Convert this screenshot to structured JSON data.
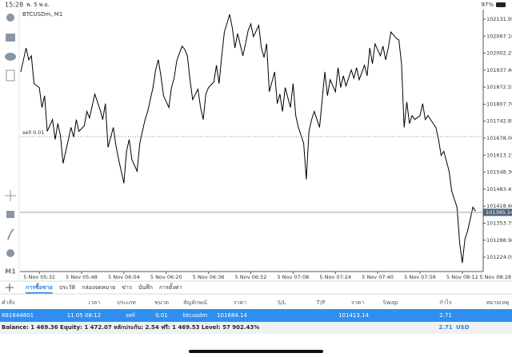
{
  "status_bar": {
    "time": "15:28",
    "date": "พ. 5 พ.ย.",
    "battery": "97%"
  },
  "toolbar": {
    "timeframe": "M1"
  },
  "chart": {
    "type": "line",
    "title": "BTCUSDm, M1",
    "x": [
      325,
      327,
      328,
      329,
      330,
      332,
      333,
      334,
      335,
      337,
      338,
      339,
      340,
      341,
      343,
      344,
      345,
      346,
      347,
      349,
      350,
      351,
      352,
      353,
      355,
      356,
      357,
      358,
      360,
      361,
      362,
      363,
      364,
      365,
      366,
      367,
      369,
      370,
      371,
      372,
      373,
      375,
      376,
      377,
      378,
      379,
      381,
      382,
      383,
      384,
      386,
      387,
      388,
      389,
      390,
      392,
      393,
      394,
      395,
      396,
      398,
      399,
      400,
      401,
      402,
      404,
      405,
      406,
      407,
      409,
      410,
      411,
      412,
      413,
      415,
      416,
      417,
      418,
      419,
      421,
      422,
      423,
      424,
      425,
      427,
      428,
      429,
      430,
      432,
      433,
      434,
      435,
      436,
      438,
      439,
      440,
      441,
      442,
      444,
      445,
      446,
      447,
      448,
      450,
      451,
      452,
      453,
      455,
      456,
      457,
      458,
      459,
      461,
      462,
      463,
      464,
      465,
      467,
      468,
      469,
      470,
      471,
      472,
      473,
      474,
      476,
      477,
      478,
      479,
      481,
      482,
      483,
      484,
      485,
      487,
      488,
      489,
      490,
      491,
      492,
      493,
      494,
      496,
      497
    ],
    "series": [
      {
        "color": "#000000",
        "values": [
          101931,
          102022,
          101977,
          101992,
          101886,
          101871,
          101795,
          101840,
          101704,
          101749,
          101673,
          101734,
          101688,
          101582,
          101673,
          101719,
          101682,
          101749,
          101704,
          101725,
          101780,
          101755,
          101801,
          101846,
          101786,
          101749,
          101810,
          101643,
          101719,
          101649,
          101597,
          101552,
          101506,
          101628,
          101673,
          101597,
          101552,
          101658,
          101704,
          101749,
          101780,
          101871,
          101938,
          101977,
          101916,
          101840,
          101795,
          101871,
          101907,
          101974,
          102029,
          102017,
          101992,
          101901,
          101825,
          101865,
          101795,
          101749,
          101846,
          101871,
          101892,
          101956,
          101886,
          101992,
          102083,
          102150,
          102099,
          102022,
          102077,
          101992,
          102038,
          102089,
          102114,
          102065,
          102108,
          102022,
          101986,
          102038,
          101855,
          101931,
          101810,
          101846,
          101780,
          101871,
          101795,
          101886,
          101764,
          101719,
          101658,
          101521,
          101704,
          101749,
          101780,
          101719,
          101825,
          101931,
          101840,
          101901,
          101855,
          101947,
          101871,
          101916,
          101877,
          101938,
          101907,
          101947,
          101901,
          101956,
          101916,
          102022,
          101962,
          102038,
          101992,
          102029,
          101977,
          102022,
          102083,
          102059,
          102053,
          101962,
          101719,
          101816,
          101734,
          101764,
          101749,
          101764,
          101810,
          101749,
          101764,
          101734,
          101719,
          101673,
          101612,
          101628,
          101552,
          101476,
          101445,
          101415,
          101278,
          101202,
          101294,
          101324,
          101415,
          101400
        ]
      }
    ],
    "xlim": [
      324.7,
      499.9
    ],
    "ylim": [
      101169.4,
      102168.4
    ],
    "xticks": [
      {
        "value": 332,
        "label": "5 Nov 05:32"
      },
      {
        "value": 348,
        "label": "5 Nov 05:48"
      },
      {
        "value": 364,
        "label": "5 Nov 06:04"
      },
      {
        "value": 380,
        "label": "5 Nov 06:20"
      },
      {
        "value": 396,
        "label": "5 Nov 06:36"
      },
      {
        "value": 412,
        "label": "5 Nov 06:52"
      },
      {
        "value": 428,
        "label": "5 Nov 07:08"
      },
      {
        "value": 444,
        "label": "5 Nov 07:24"
      },
      {
        "value": 460,
        "label": "5 Nov 07:40"
      },
      {
        "value": 476,
        "label": "5 Nov 07:56"
      },
      {
        "value": 492,
        "label": "5 Nov 08:12"
      },
      {
        "value": 508,
        "label": "5 Nov 08:28"
      }
    ],
    "yticks": [
      102131.95,
      {
        "value": 102067.1,
        "label": "102067.10"
      },
      102002.25,
      {
        "value": 101937.4,
        "label": "101937.40"
      },
      101872.55,
      {
        "value": 101807.7,
        "label": "101807.70"
      },
      101742.85,
      {
        "value": 101678,
        "label": "101678.00"
      },
      101613.15,
      {
        "value": 101548.3,
        "label": "101548.30"
      },
      101483.45,
      {
        "value": 101418.6,
        "label": "101418.60"
      },
      101353.75,
      {
        "value": 101288.9,
        "label": "101288.90"
      },
      101224.05
    ],
    "current_price": 101395.14,
    "order_line": {
      "label": "sell 0.01",
      "value": 101684.14
    }
  },
  "tabs": [
    "การซื้อขาย",
    "ประวัติ",
    "กล่องจดหมาย",
    "ข่าว",
    "บันทึก",
    "การตั้งค่า"
  ],
  "table": {
    "headers": [
      "คำสั่ง",
      "เวลา",
      "ประเภท",
      "ขนาด",
      "สัญลักษณ์",
      "ราคา",
      "S/L",
      "T/P",
      "ราคา",
      "Swap",
      "กำไร",
      "หมายเหตุ"
    ],
    "rows": [
      {
        "order": "881844801",
        "time": "11.05 08:12",
        "type": "sell",
        "volume": "0.01",
        "symbol": "btcusdm",
        "price": "101684.14",
        "current_price": "101413.14",
        "profit": "2.71"
      }
    ]
  },
  "summary": {
    "text": "Balance: 1 469.36 Equity: 1 472.07 หลักประกัน: 2.54 ฟรี: 1 469.53 Level: 57 902.43%",
    "profit": "2.71",
    "currency": "USD"
  }
}
